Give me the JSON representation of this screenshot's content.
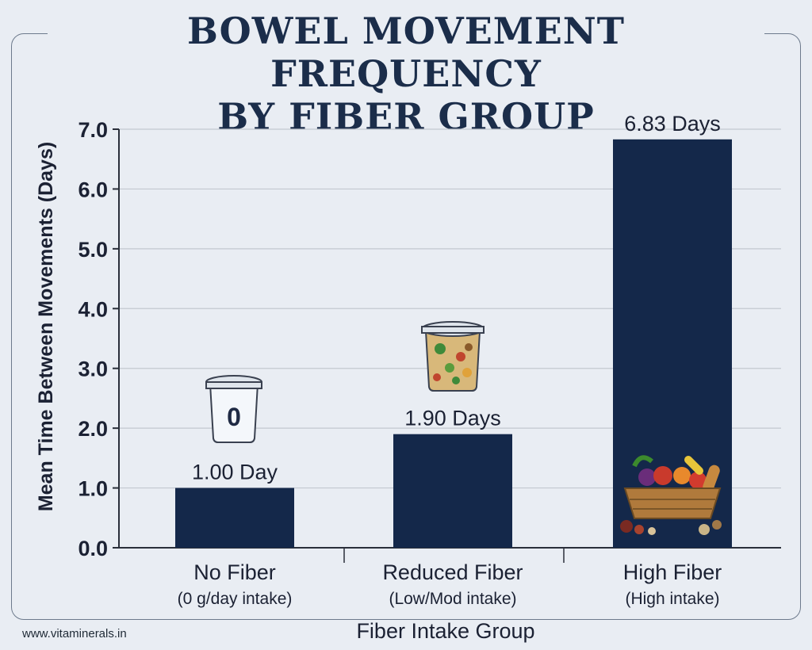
{
  "page": {
    "title_line1": "BOWEL MOVEMENT FREQUENCY",
    "title_line2": "BY FIBER GROUP",
    "footer": "www.vitaminerals.in"
  },
  "icons": {
    "no_fiber": "empty-cup-icon",
    "reduced_fiber": "salad-cup-icon",
    "high_fiber": "produce-basket-icon"
  },
  "colors": {
    "bar": "#14284a",
    "text": "#1b2133",
    "grid": "#c3c8d0",
    "background": "#e9edf3"
  },
  "chart_data": {
    "type": "bar",
    "title": "BOWEL MOVEMENT FREQUENCY BY FIBER GROUP",
    "xlabel": "Fiber Intake Group",
    "ylabel": "Mean Time Between Movements (Days)",
    "ylim": [
      0,
      7
    ],
    "yticks": [
      "0.0",
      "1.0",
      "2.0",
      "3.0",
      "4.0",
      "5.0",
      "6.0",
      "7.0"
    ],
    "grid": true,
    "categories": [
      "No Fiber",
      "Reduced Fiber",
      "High Fiber"
    ],
    "category_sublabels": [
      "(0 g/day intake)",
      "(Low/Mod intake)",
      "(High intake)"
    ],
    "values": [
      1.0,
      1.9,
      6.83
    ],
    "data_labels": [
      "1.00 Day",
      "1.90 Days",
      "6.83 Days"
    ],
    "annotations": [
      {
        "category": "No Fiber",
        "text": "0"
      }
    ]
  }
}
